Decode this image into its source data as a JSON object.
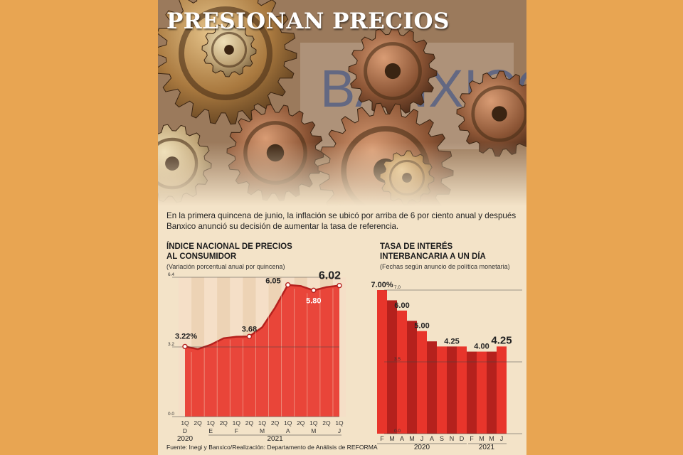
{
  "headline": "PRESIONAN PRECIOS",
  "intro": "En la primera quincena de junio, la inflación se ubicó por arriba de 6 por ciento anual y después Banxico anunció su decisión de aumentar la tasa de referencia.",
  "source": "Fuente: Inegi y Banxico/Realización: Departamento de Análisis de REFORMA",
  "colors": {
    "red": "#e8352b",
    "dark_red": "#b5211d",
    "page_bg": "#e8a552",
    "card_bg": "#f3e3c8"
  },
  "hero_image": {
    "name": "bronze-gears-photo",
    "watermark": "BANXICO"
  },
  "chart_data": [
    {
      "type": "area",
      "title": "ÍNDICE NACIONAL DE PRECIOS\nAL CONSUMIDOR",
      "subtitle": "(Variación porcentual anual por quincena)",
      "ylim": [
        0.0,
        6.4
      ],
      "y_ticks": [
        "0.0",
        "3.2",
        "6.4"
      ],
      "x_labels": [
        [
          "1Q",
          "D"
        ],
        [
          "2Q",
          ""
        ],
        [
          "1Q",
          "E"
        ],
        [
          "2Q",
          ""
        ],
        [
          "1Q",
          "F"
        ],
        [
          "2Q",
          ""
        ],
        [
          "1Q",
          "M"
        ],
        [
          "2Q",
          ""
        ],
        [
          "1Q",
          "A"
        ],
        [
          "2Q",
          ""
        ],
        [
          "1Q",
          "M"
        ],
        [
          "2Q",
          ""
        ],
        [
          "1Q",
          "J"
        ]
      ],
      "values": [
        3.22,
        3.1,
        3.3,
        3.6,
        3.67,
        3.68,
        4.1,
        5.0,
        6.05,
        6.0,
        5.8,
        5.95,
        6.02
      ],
      "marked_points": [
        0,
        5,
        8,
        10,
        12
      ],
      "data_labels": [
        {
          "index": 0,
          "text": "3.22%"
        },
        {
          "index": 5,
          "text": "3.68"
        },
        {
          "index": 8,
          "text": "6.05"
        },
        {
          "index": 10,
          "text": "5.80"
        },
        {
          "index": 12,
          "text": "6.02"
        }
      ],
      "year_labels": [
        "2020",
        "2021"
      ]
    },
    {
      "type": "bar",
      "title": "TASA DE INTERÉS\nINTERBANCARIA A UN DÍA",
      "subtitle": "(Fechas según anuncio de política monetaria)",
      "ylim": [
        0.0,
        7.0
      ],
      "y_ticks": [
        "0.0",
        "3.5",
        "7.0"
      ],
      "categories": [
        "F",
        "M",
        "A",
        "M",
        "J",
        "A",
        "S",
        "N",
        "D",
        "F",
        "M",
        "M",
        "J"
      ],
      "values": [
        7.0,
        6.5,
        6.0,
        5.5,
        5.0,
        4.5,
        4.25,
        4.25,
        4.25,
        4.0,
        4.0,
        4.0,
        4.25
      ],
      "data_labels": [
        {
          "index": 0,
          "text": "7.00%"
        },
        {
          "index": 2,
          "text": "6.00"
        },
        {
          "index": 4,
          "text": "5.00"
        },
        {
          "index": 7,
          "text": "4.25"
        },
        {
          "index": 10,
          "text": "4.00"
        },
        {
          "index": 12,
          "text": "4.25"
        }
      ],
      "year_labels": [
        "2020",
        "2021"
      ]
    }
  ]
}
